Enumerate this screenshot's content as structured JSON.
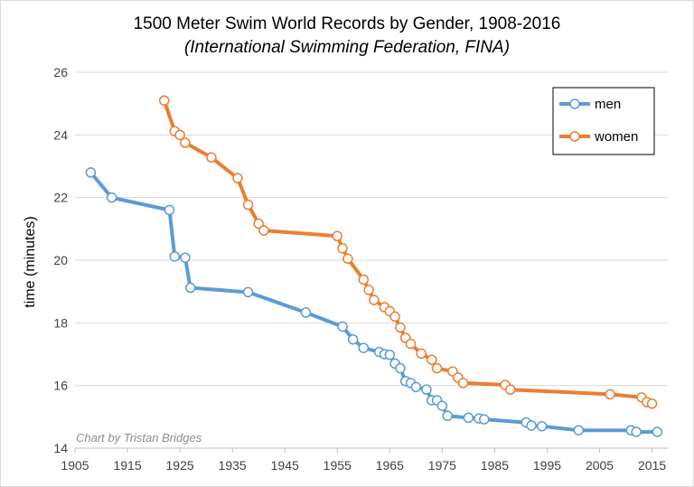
{
  "chart_data": {
    "type": "line",
    "title": "1500 Meter Swim World Records by Gender, 1908-2016",
    "subtitle": "(International Swimming Federation, FINA)",
    "xlabel": "",
    "ylabel": "time (minutes)",
    "credit": "Chart by Tristan Bridges",
    "xlim": [
      1905,
      2018
    ],
    "ylim": [
      14,
      26
    ],
    "x_ticks": [
      "1905",
      "1915",
      "1925",
      "1935",
      "1945",
      "1955",
      "1965",
      "1975",
      "1985",
      "1995",
      "2005",
      "2015"
    ],
    "y_ticks": [
      "14",
      "16",
      "18",
      "20",
      "22",
      "24",
      "26"
    ],
    "grid": "horizontal",
    "legend_position": "top-right",
    "series": [
      {
        "name": "men",
        "color": "#5b9bd5",
        "points": [
          [
            1908,
            22.8
          ],
          [
            1912,
            22.0
          ],
          [
            1923,
            21.6
          ],
          [
            1924,
            20.12
          ],
          [
            1926,
            20.08
          ],
          [
            1927,
            19.12
          ],
          [
            1938,
            18.98
          ],
          [
            1949,
            18.33
          ],
          [
            1956,
            17.88
          ],
          [
            1958,
            17.47
          ],
          [
            1960,
            17.2
          ],
          [
            1963,
            17.07
          ],
          [
            1964,
            17.0
          ],
          [
            1965,
            16.98
          ],
          [
            1966,
            16.7
          ],
          [
            1967,
            16.55
          ],
          [
            1968,
            16.14
          ],
          [
            1969,
            16.08
          ],
          [
            1970,
            15.95
          ],
          [
            1972,
            15.87
          ],
          [
            1973,
            15.53
          ],
          [
            1974,
            15.53
          ],
          [
            1975,
            15.35
          ],
          [
            1976,
            15.03
          ],
          [
            1980,
            14.97
          ],
          [
            1982,
            14.95
          ],
          [
            1983,
            14.92
          ],
          [
            1991,
            14.82
          ],
          [
            1992,
            14.72
          ],
          [
            1994,
            14.7
          ],
          [
            2001,
            14.57
          ],
          [
            2011,
            14.57
          ],
          [
            2012,
            14.52
          ],
          [
            2016,
            14.52
          ]
        ]
      },
      {
        "name": "women",
        "color": "#ed7d31",
        "points": [
          [
            1922,
            25.1
          ],
          [
            1924,
            24.12
          ],
          [
            1925,
            24.0
          ],
          [
            1926,
            23.75
          ],
          [
            1931,
            23.28
          ],
          [
            1936,
            22.62
          ],
          [
            1938,
            21.77
          ],
          [
            1940,
            21.17
          ],
          [
            1941,
            20.95
          ],
          [
            1955,
            20.77
          ],
          [
            1956,
            20.38
          ],
          [
            1957,
            20.05
          ],
          [
            1960,
            19.38
          ],
          [
            1961,
            19.05
          ],
          [
            1962,
            18.73
          ],
          [
            1964,
            18.5
          ],
          [
            1965,
            18.37
          ],
          [
            1966,
            18.2
          ],
          [
            1967,
            17.85
          ],
          [
            1968,
            17.52
          ],
          [
            1969,
            17.33
          ],
          [
            1971,
            17.02
          ],
          [
            1973,
            16.82
          ],
          [
            1974,
            16.55
          ],
          [
            1977,
            16.45
          ],
          [
            1978,
            16.25
          ],
          [
            1979,
            16.08
          ],
          [
            1987,
            16.02
          ],
          [
            1988,
            15.87
          ],
          [
            2007,
            15.72
          ],
          [
            2013,
            15.62
          ],
          [
            2014,
            15.47
          ],
          [
            2015,
            15.42
          ]
        ]
      }
    ]
  }
}
